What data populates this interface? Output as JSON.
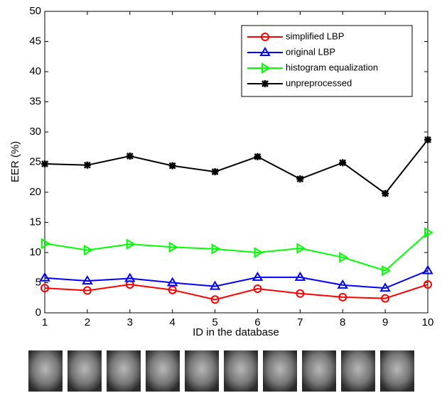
{
  "chart_data": {
    "type": "line",
    "xlabel": "ID in the database",
    "ylabel": "EER (%)",
    "x": [
      1,
      2,
      3,
      4,
      5,
      6,
      7,
      8,
      9,
      10
    ],
    "xlim": [
      1,
      10
    ],
    "xticks": [
      1,
      2,
      3,
      4,
      5,
      6,
      7,
      8,
      9,
      10
    ],
    "ylim": [
      0,
      50
    ],
    "yticks": [
      0,
      5,
      10,
      15,
      20,
      25,
      30,
      35,
      40,
      45,
      50
    ],
    "legend": "upper right",
    "series": [
      {
        "name": "simplified LBP",
        "color": "#ff0000",
        "marker": "circle",
        "values": [
          4.1,
          3.7,
          4.7,
          3.8,
          2.2,
          4.0,
          3.2,
          2.6,
          2.4,
          4.7
        ]
      },
      {
        "name": "original LBP",
        "color": "#0000ff",
        "marker": "triangle-up",
        "values": [
          5.8,
          5.3,
          5.7,
          5.0,
          4.4,
          5.9,
          5.9,
          4.6,
          4.1,
          7.0
        ]
      },
      {
        "name": "histogram equalization",
        "color": "#00ff00",
        "marker": "triangle-right",
        "values": [
          11.5,
          10.4,
          11.4,
          10.9,
          10.6,
          10.0,
          10.7,
          9.2,
          7.0,
          13.3
        ]
      },
      {
        "name": "unpreprocessed",
        "color": "#000000",
        "marker": "star",
        "values": [
          24.7,
          24.5,
          26.0,
          24.4,
          23.4,
          25.9,
          22.2,
          24.9,
          19.8,
          28.7
        ]
      }
    ]
  }
}
